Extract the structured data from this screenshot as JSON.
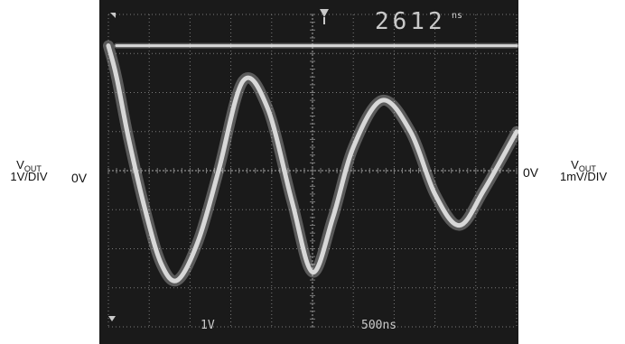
{
  "left_label": {
    "symbol": "V",
    "subscript": "OUT",
    "scale": "1V/DIV"
  },
  "left_zero": "0V",
  "right_zero": "0V",
  "right_label": {
    "symbol": "V",
    "subscript": "OUT",
    "scale": "1mV/DIV"
  },
  "scope": {
    "readout": "2612",
    "readout_unit": "ns",
    "ch1_scale": "1V",
    "timebase": "500ns",
    "grid": {
      "divisions_x": 10,
      "divisions_y": 8
    },
    "colors": {
      "screen": "#1a1a1a",
      "trace": "#d8d8d8",
      "grid": "#7a7a7a"
    },
    "markers": {
      "trigger": "trigger-marker-icon",
      "ground": "ground-marker-icon"
    }
  },
  "chart_data": {
    "type": "line",
    "xlabel": "",
    "ylabel": "",
    "x_unit": "div",
    "xlim": [
      0,
      10
    ],
    "ylim": [
      -4,
      4
    ],
    "grid": true,
    "series": [
      {
        "x": [
          0,
          0.2,
          0.5,
          0.9,
          1.3,
          1.7,
          2.2,
          2.7,
          3.3,
          3.9,
          4.5,
          5.0,
          5.5,
          6.0,
          6.7,
          7.4,
          8.0,
          8.6,
          9.2,
          10.0
        ],
        "y": [
          3.2,
          2.4,
          0.8,
          -1.0,
          -2.4,
          -2.8,
          -1.8,
          0.0,
          2.3,
          1.6,
          -0.8,
          -2.6,
          -1.2,
          0.6,
          1.8,
          1.0,
          -0.6,
          -1.4,
          -0.5,
          1.0
        ]
      },
      {
        "x": [
          0.2,
          10.0
        ],
        "y": [
          3.2,
          3.2
        ]
      }
    ]
  }
}
